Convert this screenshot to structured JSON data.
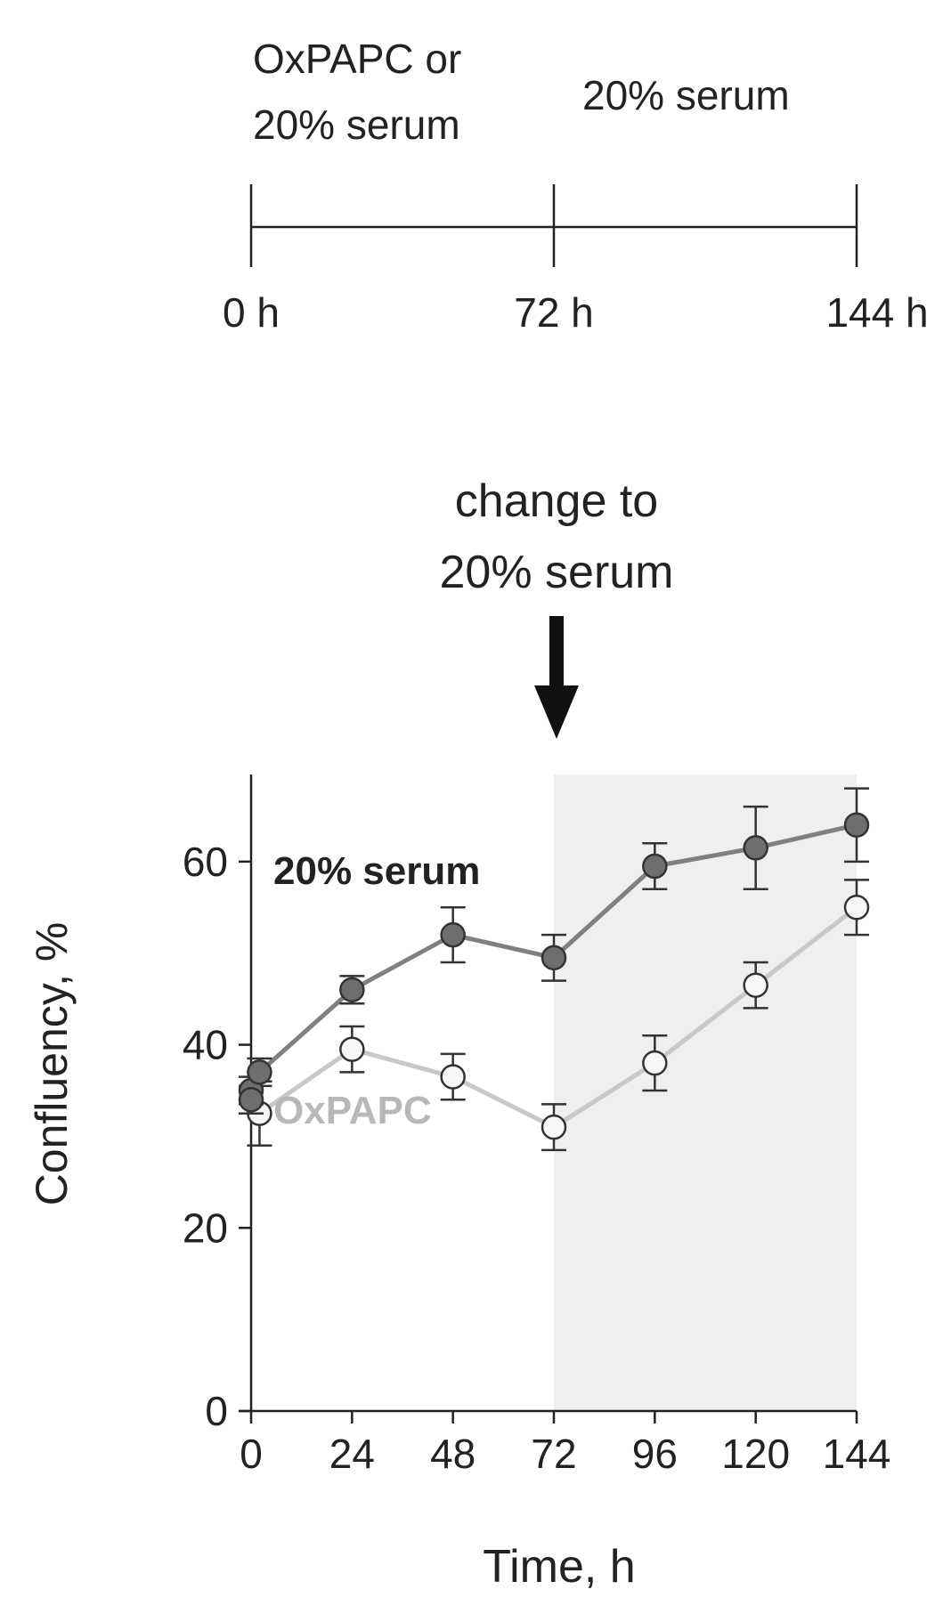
{
  "timeline": {
    "phase1_label": [
      "OxPAPC or",
      "20% serum"
    ],
    "phase2_label": "20% serum",
    "ticks": [
      "0 h",
      "72 h",
      "144 h"
    ]
  },
  "annotation": {
    "text": [
      "change to",
      "20% serum"
    ]
  },
  "chart_data": {
    "type": "line",
    "xlabel": "Time, h",
    "ylabel": "Confluency, %",
    "xlim": [
      0,
      144
    ],
    "ylim": [
      0,
      70
    ],
    "xticks": [
      0,
      24,
      48,
      72,
      96,
      120,
      144
    ],
    "yticks": [
      0,
      20,
      40,
      60
    ],
    "shaded_region": [
      72,
      144
    ],
    "shaded_color": "#efefef",
    "series": [
      {
        "name": "20% serum",
        "color": "#808080",
        "marker": "filled",
        "points": [
          {
            "x": 0,
            "y": 35.0,
            "err": 1.5
          },
          {
            "x": 0,
            "y": 34.0,
            "err": 1.5
          },
          {
            "x": 2,
            "y": 37.0,
            "err": 1.5
          },
          {
            "x": 24,
            "y": 46.0,
            "err": 1.5
          },
          {
            "x": 48,
            "y": 52.0,
            "err": 3.0
          },
          {
            "x": 72,
            "y": 49.5,
            "err": 2.5
          },
          {
            "x": 96,
            "y": 59.5,
            "err": 2.5
          },
          {
            "x": 120,
            "y": 61.5,
            "err": 4.5
          },
          {
            "x": 144,
            "y": 64.0,
            "err": 4.0
          }
        ]
      },
      {
        "name": "OxPAPC",
        "color": "#c8c8c8",
        "marker": "open",
        "points": [
          {
            "x": 2,
            "y": 32.5,
            "err": 3.5
          },
          {
            "x": 24,
            "y": 39.5,
            "err": 2.5
          },
          {
            "x": 48,
            "y": 36.5,
            "err": 2.5
          },
          {
            "x": 72,
            "y": 31.0,
            "err": 2.5
          },
          {
            "x": 96,
            "y": 38.0,
            "err": 3.0
          },
          {
            "x": 120,
            "y": 46.5,
            "err": 2.5
          },
          {
            "x": 144,
            "y": 55.0,
            "err": 3.0
          }
        ]
      }
    ]
  }
}
